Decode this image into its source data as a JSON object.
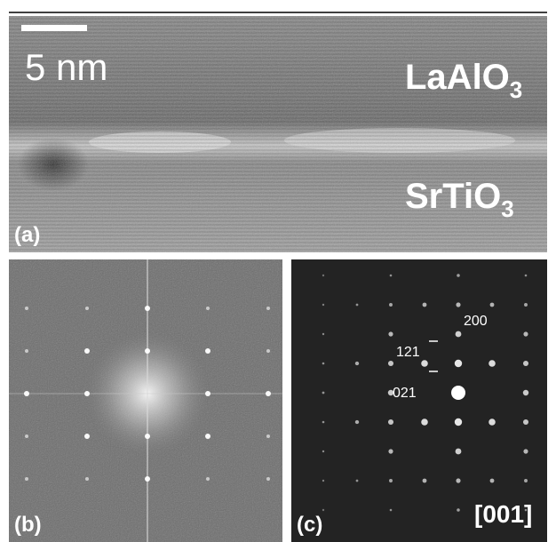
{
  "panels": [
    {
      "label": "(a)",
      "scale_bar": "5 nm",
      "layers": [
        {
          "formula": "LaAlO",
          "subscript": "3"
        },
        {
          "formula": "SrTiO",
          "subscript": "3"
        }
      ]
    },
    {
      "label": "(b)"
    },
    {
      "label": "(c)",
      "zone_axis": "[001]",
      "spot_labels": [
        "200",
        "121",
        "021"
      ]
    }
  ]
}
